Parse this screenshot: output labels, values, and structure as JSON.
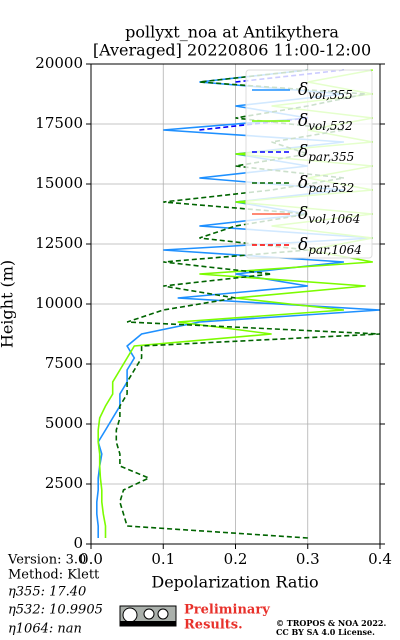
{
  "chart_data": {
    "type": "profile",
    "title": "pollyxt_noa at Antikythera",
    "subtitle": "[Averaged] 20220806 11:00-12:00",
    "x_label": "Depolarization Ratio",
    "y_label": "Height (m)",
    "xlim": [
      0,
      0.4
    ],
    "ylim": [
      0,
      20000
    ],
    "xticks": [
      {
        "value": 0,
        "label": "0.0"
      },
      {
        "value": 0.1,
        "label": "0.1"
      },
      {
        "value": 0.2,
        "label": "0.2"
      },
      {
        "value": 0.3,
        "label": "0.3"
      },
      {
        "value": 0.4,
        "label": "0.4"
      }
    ],
    "yticks": [
      0,
      2500,
      5000,
      7500,
      10000,
      12500,
      15000,
      17500,
      20000
    ],
    "grid": true,
    "legend": "upper right",
    "heights": [
      250,
      750,
      1250,
      1750,
      2250,
      2750,
      3250,
      3750,
      4250,
      4750,
      5250,
      5750,
      6250,
      6750,
      7250,
      7750,
      8250,
      8750,
      9250,
      9750,
      10250,
      10750,
      11250,
      11750,
      12250,
      12750,
      13250,
      13750,
      14250,
      14750,
      15250,
      15750,
      16250,
      16750,
      17250,
      17750,
      18250,
      18750,
      19250,
      19750
    ],
    "series": [
      {
        "name": "δvol,355",
        "color": "#1e90ff",
        "dash": false,
        "values": [
          0.01,
          0.01,
          0.008,
          0.008,
          0.01,
          0.01,
          0.012,
          0.015,
          0.01,
          0.02,
          0.03,
          0.04,
          0.04,
          0.05,
          0.05,
          0.06,
          0.05,
          0.07,
          0.15,
          0.4,
          0.12,
          0.3,
          0.2,
          0.35,
          0.1,
          0.39,
          0.15,
          0.3,
          0.2,
          0.35,
          0.15,
          0.3,
          0.2,
          0.35,
          0.1,
          0.3,
          0.2,
          0.35,
          0.15,
          0.3
        ]
      },
      {
        "name": "δvol,532",
        "color": "#7cfc00",
        "dash": false,
        "values": [
          0.02,
          0.02,
          0.017,
          0.015,
          0.015,
          0.013,
          0.012,
          0.012,
          0.01,
          0.01,
          0.012,
          0.02,
          0.03,
          0.03,
          0.04,
          0.05,
          0.06,
          0.25,
          0.12,
          0.35,
          0.2,
          0.38,
          0.15,
          0.39,
          0.3,
          0.39,
          0.25,
          0.39,
          0.2,
          0.39,
          0.3,
          0.39,
          0.2,
          0.39,
          0.3,
          0.39,
          0.25,
          0.39,
          0.3,
          0.39
        ]
      },
      {
        "name": "δpar,355",
        "color": "#0000ff",
        "dash": true,
        "values": [
          null,
          null,
          null,
          null,
          null,
          null,
          null,
          null,
          null,
          null,
          null,
          null,
          null,
          null,
          null,
          null,
          null,
          null,
          null,
          null,
          null,
          null,
          null,
          null,
          null,
          null,
          null,
          null,
          null,
          null,
          null,
          null,
          null,
          null,
          0.15,
          0.3,
          null,
          null,
          0.2,
          0.35
        ]
      },
      {
        "name": "δpar,532",
        "color": "#006400",
        "dash": true,
        "values": [
          0.3,
          0.05,
          0.045,
          0.04,
          0.045,
          0.08,
          0.04,
          0.04,
          0.035,
          0.035,
          0.04,
          0.04,
          0.05,
          0.05,
          0.06,
          0.07,
          0.07,
          0.4,
          0.05,
          0.1,
          0.2,
          0.1,
          0.25,
          0.1,
          0.3,
          0.15,
          0.2,
          0.3,
          0.1,
          0.25,
          0.35,
          0.2,
          0.3,
          0.25,
          0.35,
          0.2,
          0.3,
          0.38,
          0.15,
          0.3
        ]
      },
      {
        "name": "δvol,1064",
        "color": "#ff6347",
        "dash": false,
        "values": [
          null,
          null,
          null,
          null,
          null,
          null,
          null,
          null,
          null,
          null,
          null,
          null,
          null,
          null,
          null,
          null,
          null,
          null,
          null,
          null,
          null,
          null,
          null,
          null,
          null,
          null,
          null,
          null,
          null,
          null,
          null,
          null,
          null,
          null,
          null,
          null,
          null,
          null,
          null,
          null
        ]
      },
      {
        "name": "δpar,1064",
        "color": "#ff0000",
        "dash": true,
        "values": [
          null,
          null,
          null,
          null,
          null,
          null,
          null,
          null,
          null,
          null,
          null,
          null,
          null,
          null,
          null,
          null,
          null,
          null,
          null,
          null,
          null,
          null,
          null,
          null,
          null,
          null,
          null,
          null,
          null,
          null,
          null,
          null,
          null,
          null,
          null,
          null,
          null,
          null,
          null,
          null
        ]
      }
    ]
  },
  "footer": {
    "version": "Version: 3.0",
    "method": "Method: Klett",
    "eta355": "η355:  17.40",
    "eta532": "η532: 10.9905",
    "eta1064": "η1064:    nan",
    "preliminary": "Preliminary",
    "results": "Results.",
    "copyright": "© TROPOS & NOA 2022.",
    "license": "CC BY SA 4.0 License."
  }
}
